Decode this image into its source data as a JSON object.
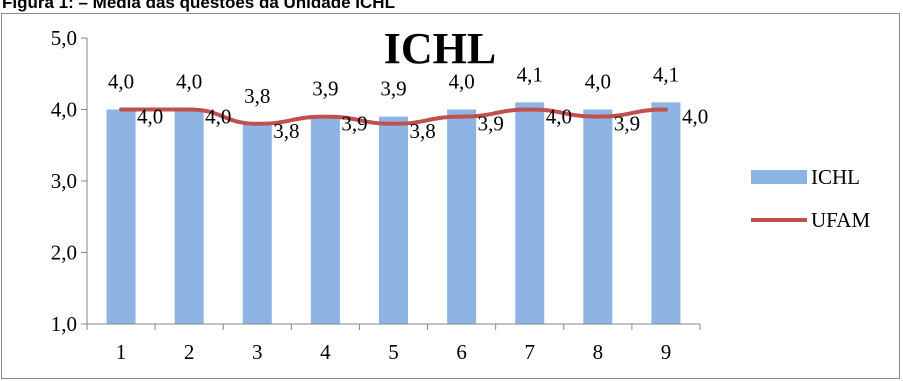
{
  "figure_caption": "Figura 1: – Média das questões da Unidade ICHL",
  "colors": {
    "bar": "#8EB4E3",
    "line": "#C0504D",
    "axis": "#868686"
  },
  "chart_data": {
    "type": "bar",
    "title": "ICHL",
    "xlabel": "",
    "ylabel": "",
    "categories": [
      "1",
      "2",
      "3",
      "4",
      "5",
      "6",
      "7",
      "8",
      "9"
    ],
    "ylim": [
      1.0,
      5.0
    ],
    "yticks": [
      "1,0",
      "2,0",
      "3,0",
      "4,0",
      "5,0"
    ],
    "grid": false,
    "legend_position": "right",
    "series": [
      {
        "name": "ICHL",
        "type": "bar",
        "values": [
          4.0,
          4.0,
          3.8,
          3.9,
          3.9,
          4.0,
          4.1,
          4.0,
          4.1
        ],
        "labels": [
          "4,0",
          "4,0",
          "3,8",
          "3,9",
          "3,9",
          "4,0",
          "4,1",
          "4,0",
          "4,1"
        ]
      },
      {
        "name": "UFAM",
        "type": "line",
        "values": [
          4.0,
          4.0,
          3.8,
          3.9,
          3.8,
          3.9,
          4.0,
          3.9,
          4.0
        ],
        "labels": [
          "4,0",
          "4,0",
          "3,8",
          "3,9",
          "3,8",
          "3,9",
          "4,0",
          "3,9",
          "4,0"
        ]
      }
    ]
  }
}
